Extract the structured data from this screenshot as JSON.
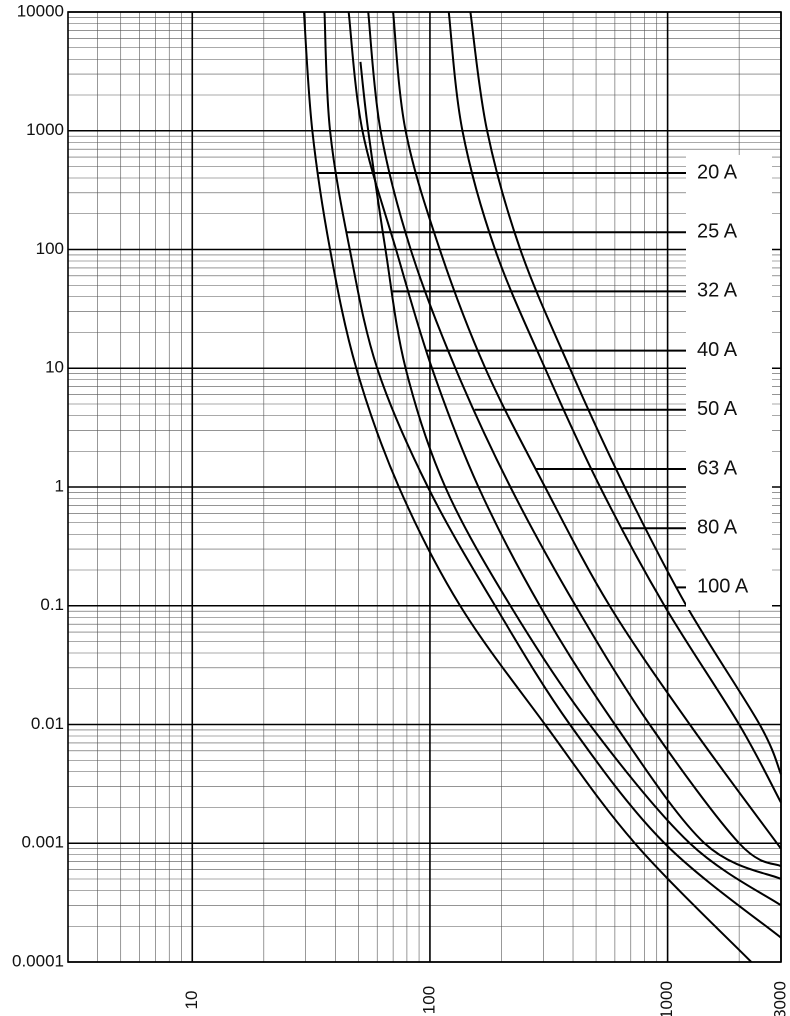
{
  "chart_data": {
    "type": "line",
    "x_scale": "log",
    "y_scale": "log",
    "grid": true,
    "minor_grid": true,
    "legend_position": "right",
    "xlim": [
      3,
      3000
    ],
    "ylim": [
      0.0001,
      10000
    ],
    "xticks": [
      10,
      100,
      1000,
      3000
    ],
    "yticks": [
      0.0001,
      0.001,
      0.01,
      0.1,
      1,
      10,
      100,
      1000,
      10000
    ],
    "series": [
      {
        "name": "20 A",
        "color": "#000000",
        "x": [
          29.5,
          32,
          38,
          49,
          74,
          134,
          305,
          728,
          2250
        ],
        "values": [
          10000,
          1000,
          100,
          10,
          1,
          0.1,
          0.01,
          0.001,
          0.0001
        ]
      },
      {
        "name": "25 A",
        "color": "#000000",
        "x": [
          36,
          38,
          46,
          60,
          98,
          188,
          388,
          971,
          3000
        ],
        "values": [
          10000,
          1000,
          100,
          10,
          1,
          0.1,
          0.01,
          0.001,
          0.00016
        ]
      },
      {
        "name": "32 A",
        "color": "#000000",
        "x": [
          51,
          55,
          65,
          79,
          116,
          218,
          470,
          1240,
          3000
        ],
        "values": [
          3800,
          1000,
          100,
          10,
          1,
          0.1,
          0.01,
          0.001,
          0.0003
        ]
      },
      {
        "name": "40 A",
        "color": "#000000",
        "x": [
          45.5,
          52,
          72,
          102,
          160,
          290,
          600,
          1430,
          3000
        ],
        "values": [
          10000,
          1000,
          100,
          10,
          1,
          0.1,
          0.01,
          0.001,
          0.0005
        ]
      },
      {
        "name": "50 A",
        "color": "#000000",
        "x": [
          55,
          62,
          83,
          128,
          218,
          410,
          840,
          2000,
          3000
        ],
        "values": [
          10000,
          1000,
          100,
          10,
          1,
          0.1,
          0.01,
          0.001,
          0.00064
        ]
      },
      {
        "name": "63 A",
        "color": "#000000",
        "x": [
          70,
          79,
          110,
          171,
          305,
          570,
          1240,
          3000
        ],
        "values": [
          10000,
          1000,
          100,
          10,
          1,
          0.1,
          0.01,
          0.0009
        ]
      },
      {
        "name": "80 A",
        "color": "#000000",
        "x": [
          120,
          137,
          188,
          305,
          520,
          970,
          2000,
          3000
        ],
        "values": [
          10000,
          1000,
          100,
          10,
          1,
          0.1,
          0.01,
          0.0022
        ]
      },
      {
        "name": "100 A",
        "color": "#000000",
        "x": [
          148,
          174,
          240,
          388,
          660,
          1200,
          2440,
          3000
        ],
        "values": [
          10000,
          1000,
          100,
          10,
          1,
          0.1,
          0.01,
          0.0038
        ]
      }
    ]
  }
}
